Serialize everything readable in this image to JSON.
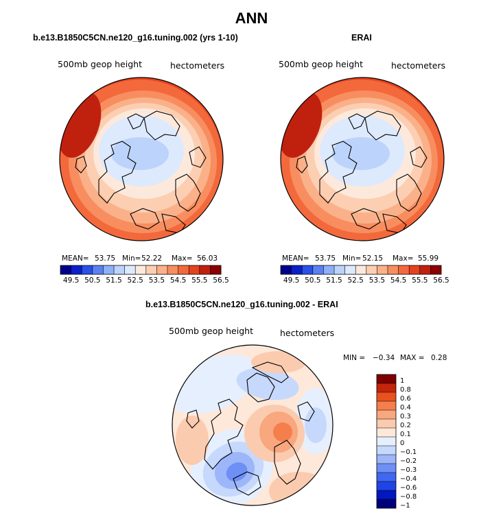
{
  "title": "ANN",
  "colors": {
    "top_scale": [
      "#00008b",
      "#0b1fc8",
      "#2a50e6",
      "#5b80f2",
      "#8fb0f7",
      "#bcd3fb",
      "#dde9fd",
      "#fde9dc",
      "#fccfb3",
      "#fab18a",
      "#f88e5f",
      "#f3693c",
      "#e4431f",
      "#c0210f",
      "#8b0000"
    ],
    "diff_scale": [
      "#00007a",
      "#0018c0",
      "#1f44e6",
      "#3f67f0",
      "#6e8ff5",
      "#9db6f9",
      "#c6d8fc",
      "#e6effe",
      "#fde8da",
      "#fbcbaf",
      "#f9a77e",
      "#f47e4c",
      "#e8521f",
      "#c4250c",
      "#7d0000"
    ]
  },
  "panels": [
    {
      "title": "b.e13.B1850C5CN.ne120_g16.tuning.002 (yrs 1-10)",
      "variable": "500mb geop height",
      "units": "hectometers",
      "mean_label": "MEAN=",
      "mean": "53.75",
      "min_label": "Min=",
      "min": "52.22",
      "max_label": "Max=",
      "max": "56.03",
      "ticks": [
        "49.5",
        "50.5",
        "51.5",
        "52.5",
        "53.5",
        "54.5",
        "55.5",
        "56.5"
      ]
    },
    {
      "title": "ERAI",
      "variable": "500mb geop height",
      "units": "hectometers",
      "mean_label": "MEAN=",
      "mean": "53.75",
      "min_label": "Min=",
      "min": "52.15",
      "max_label": "Max=",
      "max": "55.99",
      "ticks": [
        "49.5",
        "50.5",
        "51.5",
        "52.5",
        "53.5",
        "54.5",
        "55.5",
        "56.5"
      ]
    }
  ],
  "diff": {
    "title": "b.e13.B1850C5CN.ne120_g16.tuning.002 - ERAI",
    "variable": "500mb geop height",
    "units": "hectometers",
    "min_label": "MIN =",
    "min": "−0.34",
    "max_label": "MAX =",
    "max": "0.28",
    "ticks": [
      "1",
      "0.8",
      "0.6",
      "0.4",
      "0.3",
      "0.2",
      "0.1",
      "0",
      "−0.1",
      "−0.2",
      "−0.3",
      "−0.4",
      "−0.6",
      "−0.8",
      "−1"
    ]
  }
}
